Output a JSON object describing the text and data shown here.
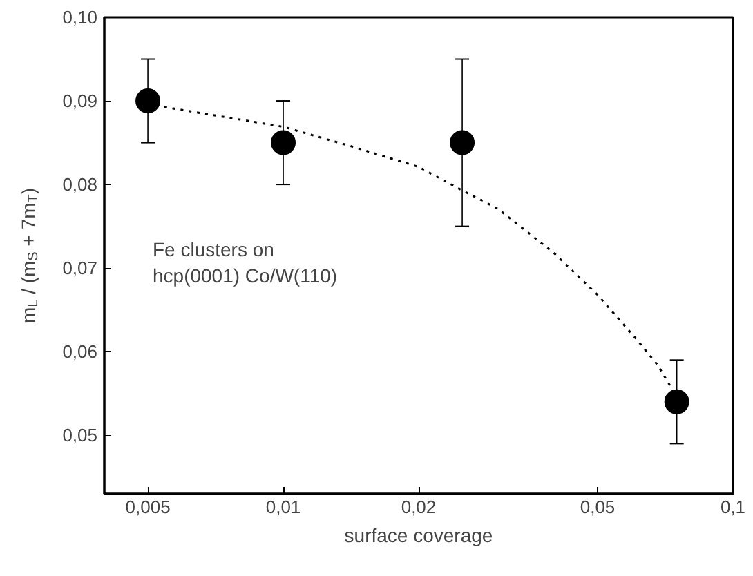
{
  "chart_data": {
    "type": "scatter",
    "xlabel": "surface coverage",
    "ylabel": "m$_{L}$ / (m$_{S}$ + 7m$_{T}$)",
    "log": "x",
    "grid": false,
    "marker": "circle",
    "xlim": [
      0.004,
      0.1
    ],
    "xticks": [
      {
        "value": 0.005,
        "label": "0,005"
      },
      {
        "value": 0.01,
        "label": "0,01"
      },
      {
        "value": 0.02,
        "label": "0,02"
      },
      {
        "value": 0.05,
        "label": "0,05"
      },
      {
        "value": 0.1,
        "label": "0,1"
      }
    ],
    "ylim": [
      0.043,
      0.1
    ],
    "yticks": [
      {
        "value": 0.05,
        "label": "0,05"
      },
      {
        "value": 0.06,
        "label": "0,06"
      },
      {
        "value": 0.07,
        "label": "0,07"
      },
      {
        "value": 0.08,
        "label": "0,08"
      },
      {
        "value": 0.09,
        "label": "0,09"
      },
      {
        "value": 0.1,
        "label": "0,10"
      }
    ],
    "annotations": [
      "Fe clusters on\nhcp(0001) Co/W(110)"
    ],
    "series": [
      {
        "color": "#000000",
        "x": [
          0.005,
          0.01,
          0.025,
          0.075
        ],
        "values": [
          0.09,
          0.085,
          0.085,
          0.054
        ],
        "errors": [
          0.005,
          0.005,
          0.01,
          0.005
        ]
      },
      {
        "type": "line",
        "color": "#000000",
        "line_style": "dotted",
        "marker": "none",
        "x": [
          0.005,
          0.01,
          0.0141,
          0.02,
          0.025,
          0.03,
          0.04,
          0.05,
          0.061,
          0.068,
          0.075
        ],
        "values": [
          0.0896,
          0.0869,
          0.0846,
          0.0821,
          0.0793,
          0.0771,
          0.0718,
          0.0668,
          0.0615,
          0.0584,
          0.0546
        ]
      }
    ]
  }
}
